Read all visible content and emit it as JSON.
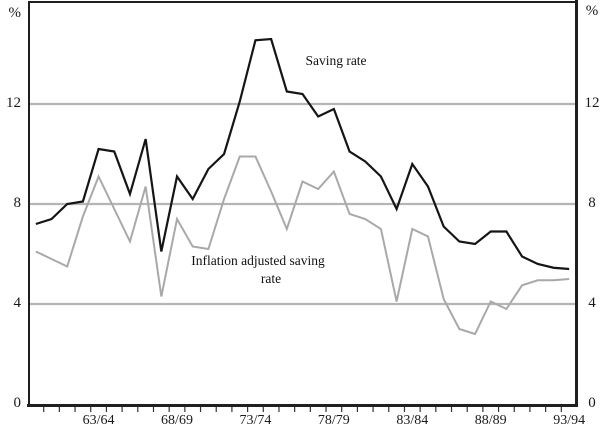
{
  "figure": {
    "unit_left": "%",
    "unit_right": "%",
    "annotation_series1": "Saving rate",
    "annotation_series2_line1": "Inflation adjusted saving",
    "annotation_series2_line2": "rate"
  },
  "chart_data": {
    "type": "line",
    "title": "",
    "xlabel": "",
    "ylabel": "%",
    "ylim": [
      0,
      16
    ],
    "grid": "horizontal gridlines at 4, 8 and 12",
    "legend_position": "inline text annotations on chart",
    "y_tick_labels": [
      "12",
      "8",
      "4",
      "0"
    ],
    "y_tick_values": [
      12,
      8,
      4,
      0
    ],
    "gridline_values": [
      12,
      8,
      4
    ],
    "x_axis_tick_labels": [
      "63/64",
      "68/69",
      "73/74",
      "78/79",
      "83/84",
      "88/89",
      "93/94"
    ],
    "x": [
      "59/60",
      "60/61",
      "61/62",
      "62/63",
      "63/64",
      "64/65",
      "65/66",
      "66/67",
      "67/68",
      "68/69",
      "69/70",
      "70/71",
      "71/72",
      "72/73",
      "73/74",
      "74/75",
      "75/76",
      "76/77",
      "77/78",
      "78/79",
      "79/80",
      "80/81",
      "81/82",
      "82/83",
      "83/84",
      "84/85",
      "85/86",
      "86/87",
      "87/88",
      "88/89",
      "89/90",
      "90/91",
      "91/92",
      "92/93",
      "93/94"
    ],
    "series": [
      {
        "name": "Saving rate",
        "color": "#151515",
        "width": 2.2,
        "values": [
          7.2,
          7.4,
          8.0,
          8.1,
          10.2,
          10.1,
          8.4,
          10.6,
          6.1,
          9.1,
          8.2,
          9.4,
          10.0,
          12.1,
          14.55,
          14.6,
          12.5,
          12.4,
          11.5,
          11.8,
          10.1,
          9.7,
          9.1,
          7.8,
          9.6,
          8.7,
          7.1,
          6.5,
          6.4,
          6.9,
          6.9,
          5.9,
          5.6,
          5.45,
          5.4
        ]
      },
      {
        "name": "Inflation adjusted saving rate",
        "color": "#a9a9a9",
        "width": 2.0,
        "values": [
          6.1,
          5.8,
          5.5,
          7.5,
          9.1,
          7.8,
          6.5,
          8.7,
          4.3,
          7.4,
          6.3,
          6.2,
          8.2,
          9.9,
          9.9,
          8.5,
          7.0,
          8.9,
          8.6,
          9.3,
          7.6,
          7.4,
          7.0,
          4.1,
          7.0,
          6.7,
          4.2,
          3.0,
          2.8,
          4.1,
          3.8,
          4.75,
          4.95,
          4.95,
          5.0
        ]
      }
    ]
  },
  "colors": {
    "background": "#ffffff",
    "axis": "#1f1f1f",
    "tick": "#333333",
    "gridline": "#b5b5b5",
    "text": "#1a1a1a"
  }
}
